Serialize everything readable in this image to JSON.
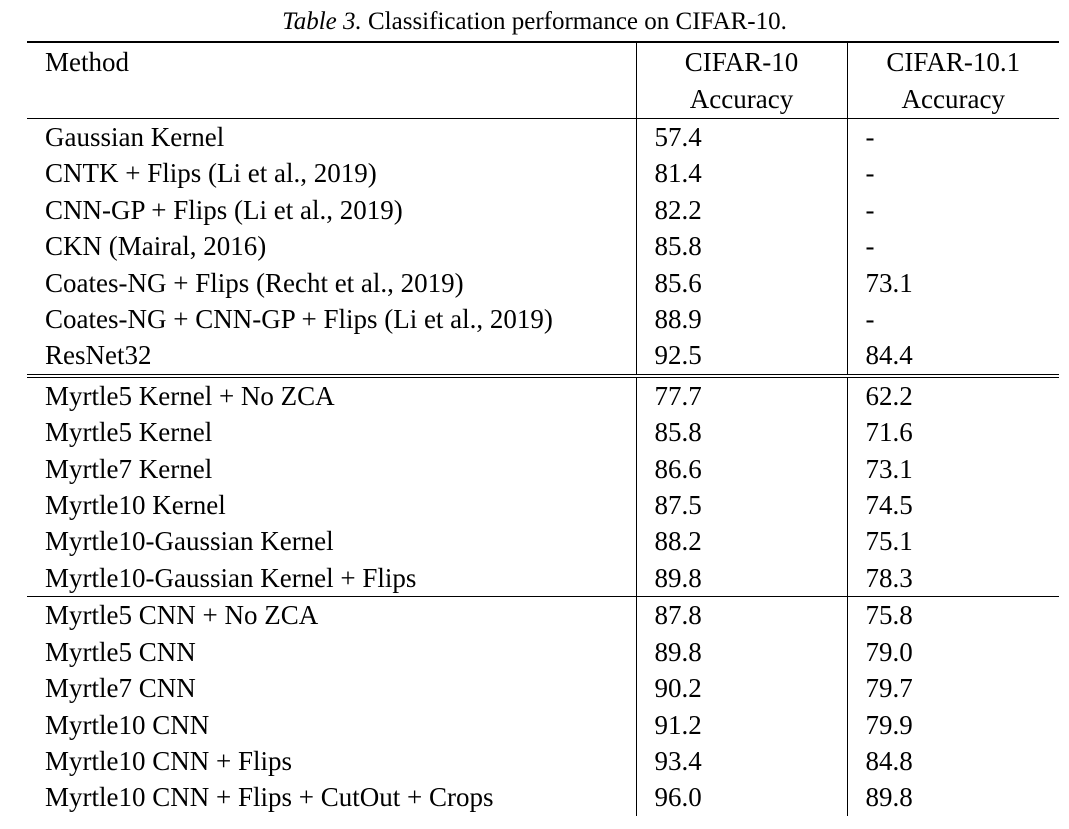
{
  "caption": {
    "label": "Table 3.",
    "text": "Classification performance on CIFAR-10."
  },
  "headers": {
    "method": "Method",
    "cifar10_line1": "CIFAR-10",
    "cifar10_line2": "Accuracy",
    "cifar101_line1": "CIFAR-10.1",
    "cifar101_line2": "Accuracy"
  },
  "groups": [
    {
      "rows": [
        {
          "method": "Gaussian Kernel",
          "cifar10": "57.4",
          "cifar101": "-"
        },
        {
          "method": "CNTK + Flips (Li et al., 2019)",
          "cifar10": "81.4",
          "cifar101": "-"
        },
        {
          "method": "CNN-GP + Flips (Li et al., 2019)",
          "cifar10": "82.2",
          "cifar101": "-"
        },
        {
          "method": "CKN (Mairal, 2016)",
          "cifar10": "85.8",
          "cifar101": "-"
        },
        {
          "method": "Coates-NG + Flips (Recht et al., 2019)",
          "cifar10": "85.6",
          "cifar101": "73.1"
        },
        {
          "method": "Coates-NG + CNN-GP + Flips (Li et al., 2019)",
          "cifar10": "88.9",
          "cifar101": "-"
        },
        {
          "method": "ResNet32",
          "cifar10": "92.5",
          "cifar101": "84.4"
        }
      ]
    },
    {
      "rows": [
        {
          "method": "Myrtle5 Kernel + No ZCA",
          "cifar10": "77.7",
          "cifar101": "62.2"
        },
        {
          "method": "Myrtle5 Kernel",
          "cifar10": "85.8",
          "cifar101": "71.6"
        },
        {
          "method": "Myrtle7 Kernel",
          "cifar10": "86.6",
          "cifar101": "73.1"
        },
        {
          "method": "Myrtle10 Kernel",
          "cifar10": "87.5",
          "cifar101": "74.5"
        },
        {
          "method": "Myrtle10-Gaussian Kernel",
          "cifar10": "88.2",
          "cifar101": "75.1"
        },
        {
          "method": "Myrtle10-Gaussian Kernel + Flips",
          "cifar10": "89.8",
          "cifar101": "78.3"
        }
      ]
    },
    {
      "rows": [
        {
          "method": "Myrtle5 CNN + No ZCA",
          "cifar10": "87.8",
          "cifar101": "75.8"
        },
        {
          "method": "Myrtle5 CNN",
          "cifar10": "89.8",
          "cifar101": "79.0"
        },
        {
          "method": "Myrtle7 CNN",
          "cifar10": "90.2",
          "cifar101": "79.7"
        },
        {
          "method": "Myrtle10 CNN",
          "cifar10": "91.2",
          "cifar101": "79.9"
        },
        {
          "method": "Myrtle10 CNN + Flips",
          "cifar10": "93.4",
          "cifar101": "84.8"
        },
        {
          "method": "Myrtle10 CNN + Flips + CutOut + Crops",
          "cifar10": "96.0",
          "cifar101": "89.8"
        }
      ]
    }
  ]
}
